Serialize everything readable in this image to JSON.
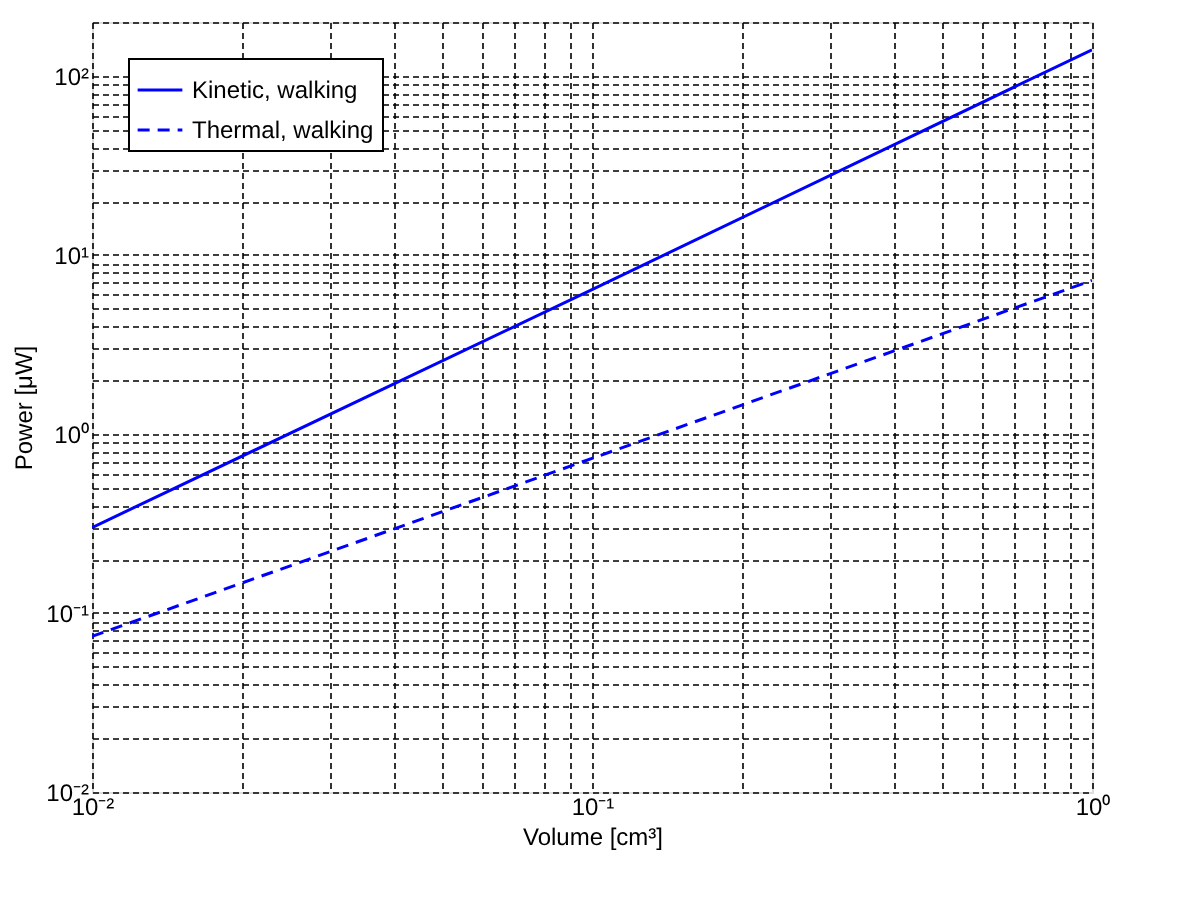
{
  "chart_data": {
    "type": "line",
    "xlabel": "Volume [cm³]",
    "ylabel": "Power [μW]",
    "log": "xy",
    "grid": true,
    "legend": "top left",
    "xlim": [
      0.01,
      1
    ],
    "ylim": [
      0.01,
      200
    ],
    "xticks": [
      {
        "value": 0.01,
        "label": "10⁻²"
      },
      {
        "value": 0.02,
        "label": null
      },
      {
        "value": 0.03,
        "label": null
      },
      {
        "value": 0.04,
        "label": null
      },
      {
        "value": 0.05,
        "label": null
      },
      {
        "value": 0.06,
        "label": null
      },
      {
        "value": 0.07,
        "label": null
      },
      {
        "value": 0.08,
        "label": null
      },
      {
        "value": 0.09,
        "label": null
      },
      {
        "value": 0.1,
        "label": "10⁻¹"
      },
      {
        "value": 0.2,
        "label": null
      },
      {
        "value": 0.3,
        "label": null
      },
      {
        "value": 0.4,
        "label": null
      },
      {
        "value": 0.5,
        "label": null
      },
      {
        "value": 0.6,
        "label": null
      },
      {
        "value": 0.7,
        "label": null
      },
      {
        "value": 0.8,
        "label": null
      },
      {
        "value": 0.9,
        "label": null
      },
      {
        "value": 1,
        "label": "10⁰"
      }
    ],
    "yticks": [
      {
        "value": 0.01,
        "label": "10⁻²"
      },
      {
        "value": 0.02,
        "label": null
      },
      {
        "value": 0.03,
        "label": null
      },
      {
        "value": 0.04,
        "label": null
      },
      {
        "value": 0.05,
        "label": null
      },
      {
        "value": 0.06,
        "label": null
      },
      {
        "value": 0.07,
        "label": null
      },
      {
        "value": 0.08,
        "label": null
      },
      {
        "value": 0.09,
        "label": null
      },
      {
        "value": 0.1,
        "label": "10⁻¹"
      },
      {
        "value": 0.2,
        "label": null
      },
      {
        "value": 0.3,
        "label": null
      },
      {
        "value": 0.4,
        "label": null
      },
      {
        "value": 0.5,
        "label": null
      },
      {
        "value": 0.6,
        "label": null
      },
      {
        "value": 0.7,
        "label": null
      },
      {
        "value": 0.8,
        "label": null
      },
      {
        "value": 0.9,
        "label": null
      },
      {
        "value": 1,
        "label": "10⁰"
      },
      {
        "value": 2,
        "label": null
      },
      {
        "value": 3,
        "label": null
      },
      {
        "value": 4,
        "label": null
      },
      {
        "value": 5,
        "label": null
      },
      {
        "value": 6,
        "label": null
      },
      {
        "value": 7,
        "label": null
      },
      {
        "value": 8,
        "label": null
      },
      {
        "value": 9,
        "label": null
      },
      {
        "value": 10,
        "label": "10¹"
      },
      {
        "value": 20,
        "label": null
      },
      {
        "value": 30,
        "label": null
      },
      {
        "value": 40,
        "label": null
      },
      {
        "value": 50,
        "label": null
      },
      {
        "value": 60,
        "label": null
      },
      {
        "value": 70,
        "label": null
      },
      {
        "value": 80,
        "label": null
      },
      {
        "value": 90,
        "label": null
      },
      {
        "value": 100,
        "label": "10²"
      },
      {
        "value": 200,
        "label": null
      }
    ],
    "x": [
      0.01,
      0.1,
      1
    ],
    "series": [
      {
        "name": "Kinetic, walking",
        "color": "#0000ff",
        "line_style": "solid",
        "values": [
          0.3,
          6.4,
          140
        ]
      },
      {
        "name": "Thermal, walking",
        "color": "#0000ff",
        "line_style": "dashed",
        "values": [
          0.074,
          0.73,
          7.2
        ]
      }
    ]
  }
}
